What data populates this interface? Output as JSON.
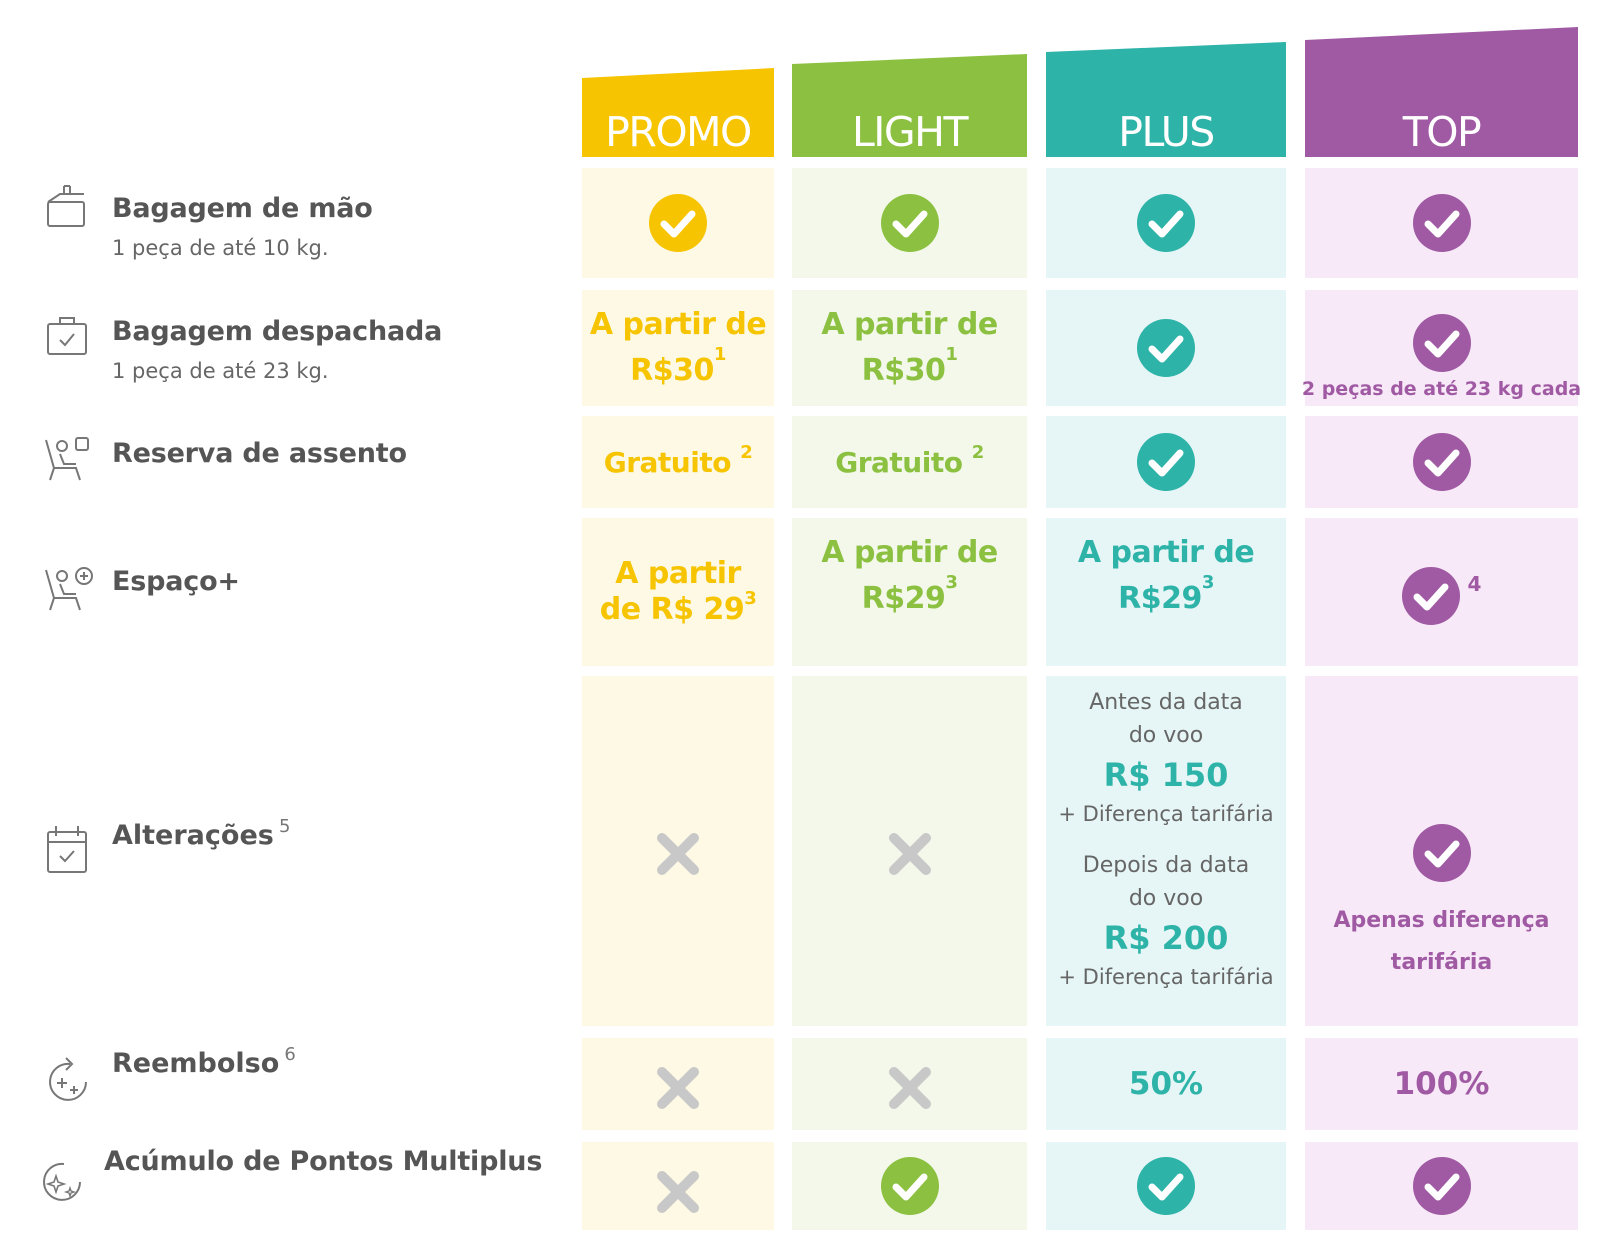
{
  "colors": {
    "promo": "#f6c400",
    "promo_bg": "#fdf9e4",
    "light": "#8bc040",
    "light_bg": "#f3f8ea",
    "plus": "#2db3a8",
    "plus_bg": "#e6f5f5",
    "top": "#a05aa3",
    "top_bg": "#f7e9f7",
    "cross": "#c8c8c8"
  },
  "plans": [
    "PROMO",
    "LIGHT",
    "PLUS",
    "TOP"
  ],
  "features": {
    "hand_bag": {
      "title": "Bagagem de mão",
      "sub": "1 peça de até 10 kg.",
      "icon": "carry-on-bag-icon"
    },
    "checked_bag": {
      "title": "Bagagem despachada",
      "sub": "1 peça de até 23 kg.",
      "icon": "checked-bag-icon"
    },
    "seat": {
      "title": "Reserva de assento",
      "icon": "seat-icon"
    },
    "space": {
      "title": "Espaço+",
      "icon": "extra-space-seat-icon"
    },
    "changes": {
      "title": "Alterações",
      "sup": "5",
      "icon": "calendar-icon"
    },
    "refund": {
      "title": "Reembolso",
      "sup": "6",
      "icon": "refund-icon"
    },
    "points": {
      "title": "Acúmulo de Pontos Multiplus",
      "icon": "points-sparkle-icon"
    }
  },
  "cells": {
    "checked_bag": {
      "promo_line1": "A partir de",
      "promo_line2": "R$30",
      "promo_sup": "1",
      "light_line1": "A partir de",
      "light_line2": "R$30",
      "light_sup": "1",
      "top_note": "2 peças de até 23 kg cada"
    },
    "seat": {
      "promo": "Gratuito",
      "promo_sup": "2",
      "light": "Gratuito",
      "light_sup": "2"
    },
    "space": {
      "promo_line1": "A partir",
      "promo_line2": "de R$ 29",
      "promo_sup": "3",
      "light_line1": "A partir de",
      "light_line2": "R$29",
      "light_sup": "3",
      "plus_line1": "A partir de",
      "plus_line2": "R$29",
      "plus_sup": "3",
      "top_sup": "4"
    },
    "changes": {
      "plus_before_1": "Antes da data",
      "plus_before_2": "do voo",
      "plus_before_price": "R$ 150",
      "plus_before_diff": "+ Diferença tarifária",
      "plus_after_1": "Depois da data",
      "plus_after_2": "do voo",
      "plus_after_price": "R$ 200",
      "plus_after_diff": "+ Diferença tarifária",
      "top_line1": "Apenas diferença",
      "top_line2": "tarifária"
    },
    "refund": {
      "plus": "50%",
      "top": "100%"
    }
  }
}
